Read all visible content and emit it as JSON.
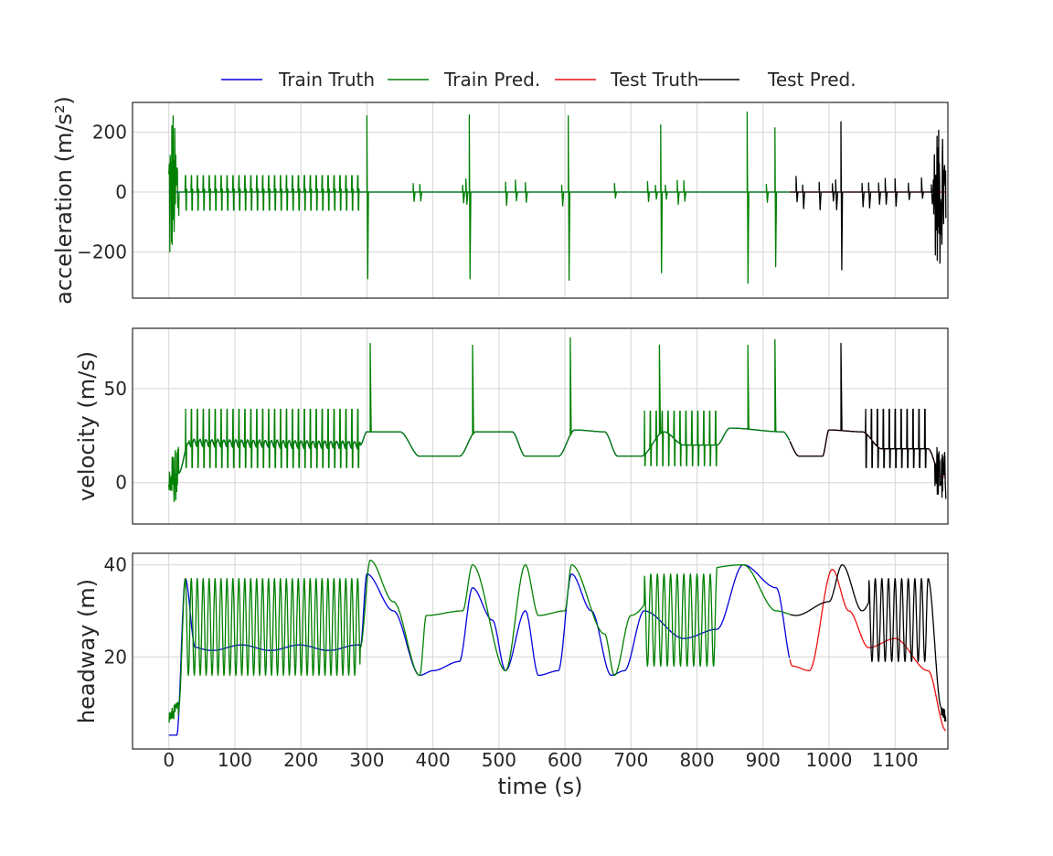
{
  "chart_data": {
    "type": "line",
    "legend": {
      "placement": "top-center",
      "entries": [
        {
          "label": "Train Truth",
          "color": "#0000dd"
        },
        {
          "label": "Train Pred.",
          "color": "#008000"
        },
        {
          "label": "Test Truth",
          "color": "#ee1111"
        },
        {
          "label": "Test Pred.",
          "color": "#000000"
        }
      ]
    },
    "xlabel": "time (s)",
    "xlim": [
      -55,
      1180
    ],
    "xticks": [
      0,
      100,
      200,
      300,
      400,
      500,
      600,
      700,
      800,
      900,
      1000,
      1100
    ],
    "grid": true,
    "train_end": 940,
    "test_end": 1177,
    "panels": [
      {
        "id": "acceleration",
        "ylabel": "acceleration (m/s²)",
        "ylim": [
          -355,
          300
        ],
        "yticks": [
          -200,
          0,
          200
        ],
        "ytick_labels": [
          "−200",
          "0",
          "200"
        ],
        "spikes": {
          "train_pred": [
            [
              300,
              255,
              -290
            ],
            [
              455,
              258,
              -290
            ],
            [
              605,
              255,
              -295
            ],
            [
              745,
              225,
              -270
            ],
            [
              876,
              268,
              -305
            ],
            [
              918,
              215,
              -250
            ]
          ],
          "test_pred": [
            [
              1018,
              235,
              -260
            ]
          ],
          "small_train": [
            370,
            380,
            445,
            450,
            510,
            525,
            540,
            595,
            675,
            725,
            737,
            752,
            770,
            780,
            905
          ],
          "small_test": [
            950,
            960,
            985,
            1005,
            1010,
            1050,
            1060,
            1075,
            1085,
            1100,
            1120,
            1140,
            1155
          ]
        },
        "regular_oscillation": {
          "t_start": 25,
          "t_end": 290,
          "period": 9,
          "amplitude": 55
        },
        "noise_bursts": [
          {
            "t_start": 0,
            "t_end": 15,
            "amplitude": 330
          },
          {
            "t_start": 1158,
            "t_end": 1177,
            "amplitude": 300
          }
        ]
      },
      {
        "id": "velocity",
        "ylabel": "velocity (m/s)",
        "ylim": [
          -22,
          82
        ],
        "yticks": [
          0,
          50
        ],
        "ytick_labels": [
          "0",
          "50"
        ],
        "truth_levels": [
          [
            0,
            0
          ],
          [
            15,
            5
          ],
          [
            30,
            21
          ],
          [
            290,
            20
          ],
          [
            300,
            27
          ],
          [
            350,
            27
          ],
          [
            380,
            14
          ],
          [
            440,
            14
          ],
          [
            465,
            27
          ],
          [
            520,
            27
          ],
          [
            540,
            14
          ],
          [
            590,
            14
          ],
          [
            615,
            28
          ],
          [
            660,
            27
          ],
          [
            680,
            14
          ],
          [
            715,
            14
          ],
          [
            750,
            27
          ],
          [
            780,
            20
          ],
          [
            830,
            20
          ],
          [
            850,
            29
          ],
          [
            930,
            27
          ],
          [
            955,
            14
          ],
          [
            990,
            14
          ],
          [
            1000,
            28
          ],
          [
            1050,
            27
          ],
          [
            1080,
            18
          ],
          [
            1120,
            18
          ],
          [
            1150,
            18
          ],
          [
            1170,
            3
          ]
        ],
        "spike_times": [
          305,
          460,
          608,
          743,
          877,
          918,
          1018
        ],
        "spike_peaks": [
          74,
          73,
          77,
          73,
          73,
          76,
          74
        ]
      },
      {
        "id": "headway",
        "ylabel": "headway (m)",
        "ylim": [
          0,
          42.5
        ],
        "yticks": [
          20,
          40
        ],
        "ytick_labels": [
          "20",
          "40"
        ],
        "truth_levels": [
          [
            0,
            3
          ],
          [
            12,
            3
          ],
          [
            25,
            37
          ],
          [
            40,
            22
          ],
          [
            290,
            22
          ],
          [
            300,
            38
          ],
          [
            340,
            30
          ],
          [
            380,
            16
          ],
          [
            400,
            17
          ],
          [
            440,
            19
          ],
          [
            460,
            35
          ],
          [
            490,
            28
          ],
          [
            510,
            17
          ],
          [
            540,
            30
          ],
          [
            560,
            16
          ],
          [
            590,
            17
          ],
          [
            610,
            38
          ],
          [
            640,
            30
          ],
          [
            670,
            16
          ],
          [
            690,
            17
          ],
          [
            720,
            30
          ],
          [
            780,
            24
          ],
          [
            830,
            26
          ],
          [
            870,
            40
          ],
          [
            920,
            35
          ],
          [
            945,
            18
          ],
          [
            970,
            17
          ],
          [
            1005,
            39
          ],
          [
            1030,
            30
          ],
          [
            1060,
            22
          ],
          [
            1100,
            24
          ],
          [
            1150,
            17
          ],
          [
            1177,
            4
          ]
        ],
        "pred_levels": [
          [
            0,
            7
          ],
          [
            15,
            9
          ],
          [
            25,
            37
          ],
          [
            290,
            22
          ],
          [
            305,
            41
          ],
          [
            340,
            32
          ],
          [
            380,
            16
          ],
          [
            390,
            29
          ],
          [
            445,
            30
          ],
          [
            460,
            40
          ],
          [
            510,
            17
          ],
          [
            540,
            40
          ],
          [
            560,
            29
          ],
          [
            600,
            30
          ],
          [
            610,
            40
          ],
          [
            660,
            25
          ],
          [
            675,
            16
          ],
          [
            700,
            29
          ],
          [
            760,
            38
          ],
          [
            870,
            40
          ],
          [
            920,
            30
          ],
          [
            950,
            29
          ],
          [
            1000,
            32
          ],
          [
            1020,
            40
          ],
          [
            1050,
            30
          ],
          [
            1080,
            37
          ],
          [
            1120,
            37
          ],
          [
            1150,
            37
          ],
          [
            1170,
            9
          ],
          [
            1177,
            7
          ]
        ]
      }
    ]
  }
}
